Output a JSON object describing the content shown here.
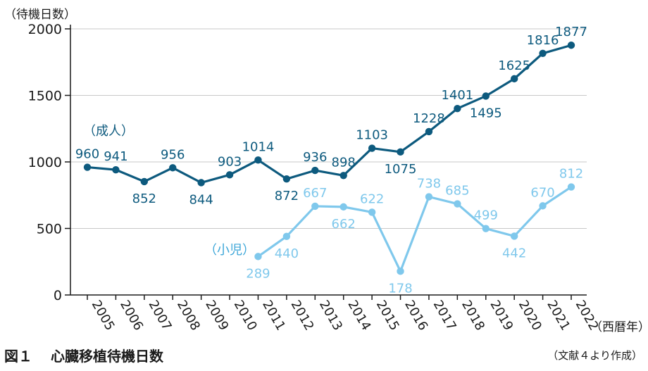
{
  "chart_data": {
    "type": "line",
    "ylabel": "（待機日数）",
    "xlabel": "（西暦年）",
    "ylim": [
      0,
      2000
    ],
    "yticks": [
      0,
      500,
      1000,
      1500,
      2000
    ],
    "x": [
      "2005",
      "2006",
      "2007",
      "2008",
      "2009",
      "2010",
      "2011",
      "2012",
      "2013",
      "2014",
      "2015",
      "2016",
      "2017",
      "2018",
      "2019",
      "2020",
      "2021",
      "2022"
    ],
    "grid": true,
    "series": [
      {
        "name": "（成人）",
        "color": "#0d5a7e",
        "values": [
          960,
          941,
          852,
          956,
          844,
          903,
          1014,
          872,
          936,
          898,
          1103,
          1075,
          1228,
          1401,
          1495,
          1625,
          1816,
          1877
        ]
      },
      {
        "name": "（小児）",
        "color": "#7fc8ec",
        "values": [
          null,
          null,
          null,
          null,
          null,
          null,
          289,
          440,
          667,
          662,
          622,
          178,
          738,
          685,
          499,
          442,
          670,
          812
        ]
      }
    ]
  },
  "caption": {
    "figure_no": "図１",
    "title": "心臓移植待機日数",
    "source": "（文献４より作成）"
  }
}
